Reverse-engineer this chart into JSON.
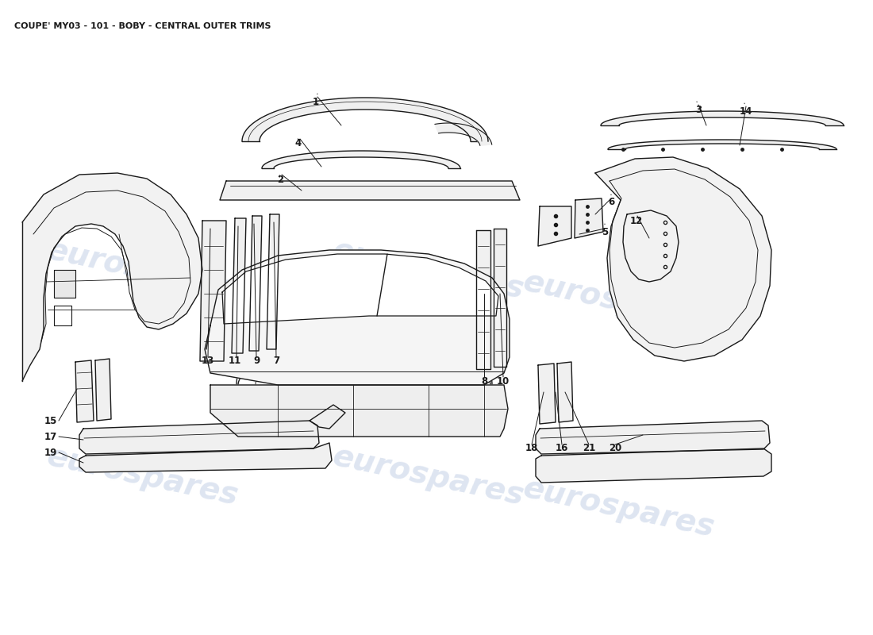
{
  "title": "COUPE' MY03 - 101 - BOBY - CENTRAL OUTER TRIMS",
  "title_fontsize": 8,
  "background_color": "#ffffff",
  "watermark_text": "eurospares",
  "watermark_color": "#c8d4e8",
  "line_color": "#1a1a1a",
  "line_width": 1.0,
  "label_fontsize": 8.5
}
